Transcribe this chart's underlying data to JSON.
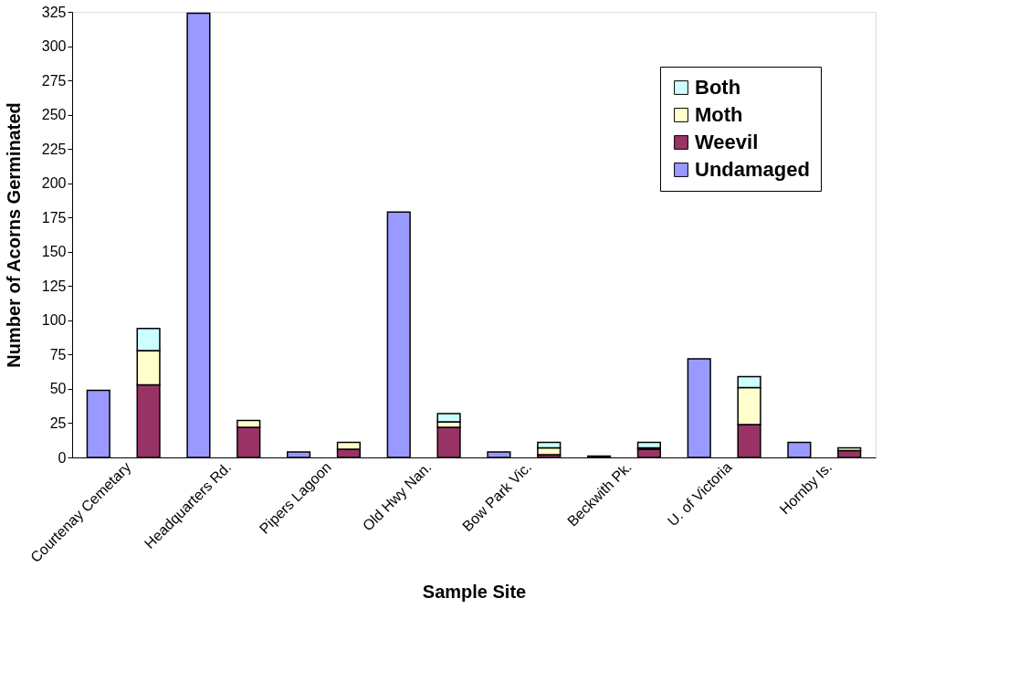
{
  "chart_data": {
    "type": "bar",
    "stacked": true,
    "xlabel": "Sample Site",
    "ylabel": "Number of Acorns Germinated",
    "categories": [
      "Courtenay Cemetary",
      null,
      "Headquarters Rd.",
      null,
      "Pipers Lagoon",
      null,
      "Old Hwy Nan.",
      null,
      "Bow Park Vic.",
      null,
      "Beckwith Pk.",
      null,
      "U. of Victoria",
      null,
      "Hornby Is.",
      null
    ],
    "series": [
      {
        "name": "Undamaged",
        "color": "#9999ff",
        "values": [
          49,
          null,
          324,
          null,
          4,
          null,
          179,
          null,
          4,
          null,
          1,
          null,
          72,
          null,
          11,
          null
        ]
      },
      {
        "name": "Weevil",
        "color": "#993366",
        "values": [
          null,
          53,
          null,
          22,
          null,
          6,
          null,
          22,
          null,
          2,
          null,
          6,
          null,
          24,
          null,
          5
        ]
      },
      {
        "name": "Moth",
        "color": "#ffffcc",
        "values": [
          null,
          25,
          null,
          5,
          null,
          5,
          null,
          4,
          null,
          5,
          null,
          1,
          null,
          27,
          null,
          2
        ]
      },
      {
        "name": "Both",
        "color": "#ccffff",
        "values": [
          null,
          16,
          null,
          null,
          null,
          null,
          null,
          6,
          null,
          4,
          null,
          4,
          null,
          8,
          null,
          null
        ]
      }
    ],
    "ylim": [
      0,
      325
    ],
    "yticks": [
      0,
      25,
      50,
      75,
      100,
      125,
      150,
      175,
      200,
      225,
      250,
      275,
      300,
      325
    ],
    "grid": false,
    "legend": "top right"
  }
}
